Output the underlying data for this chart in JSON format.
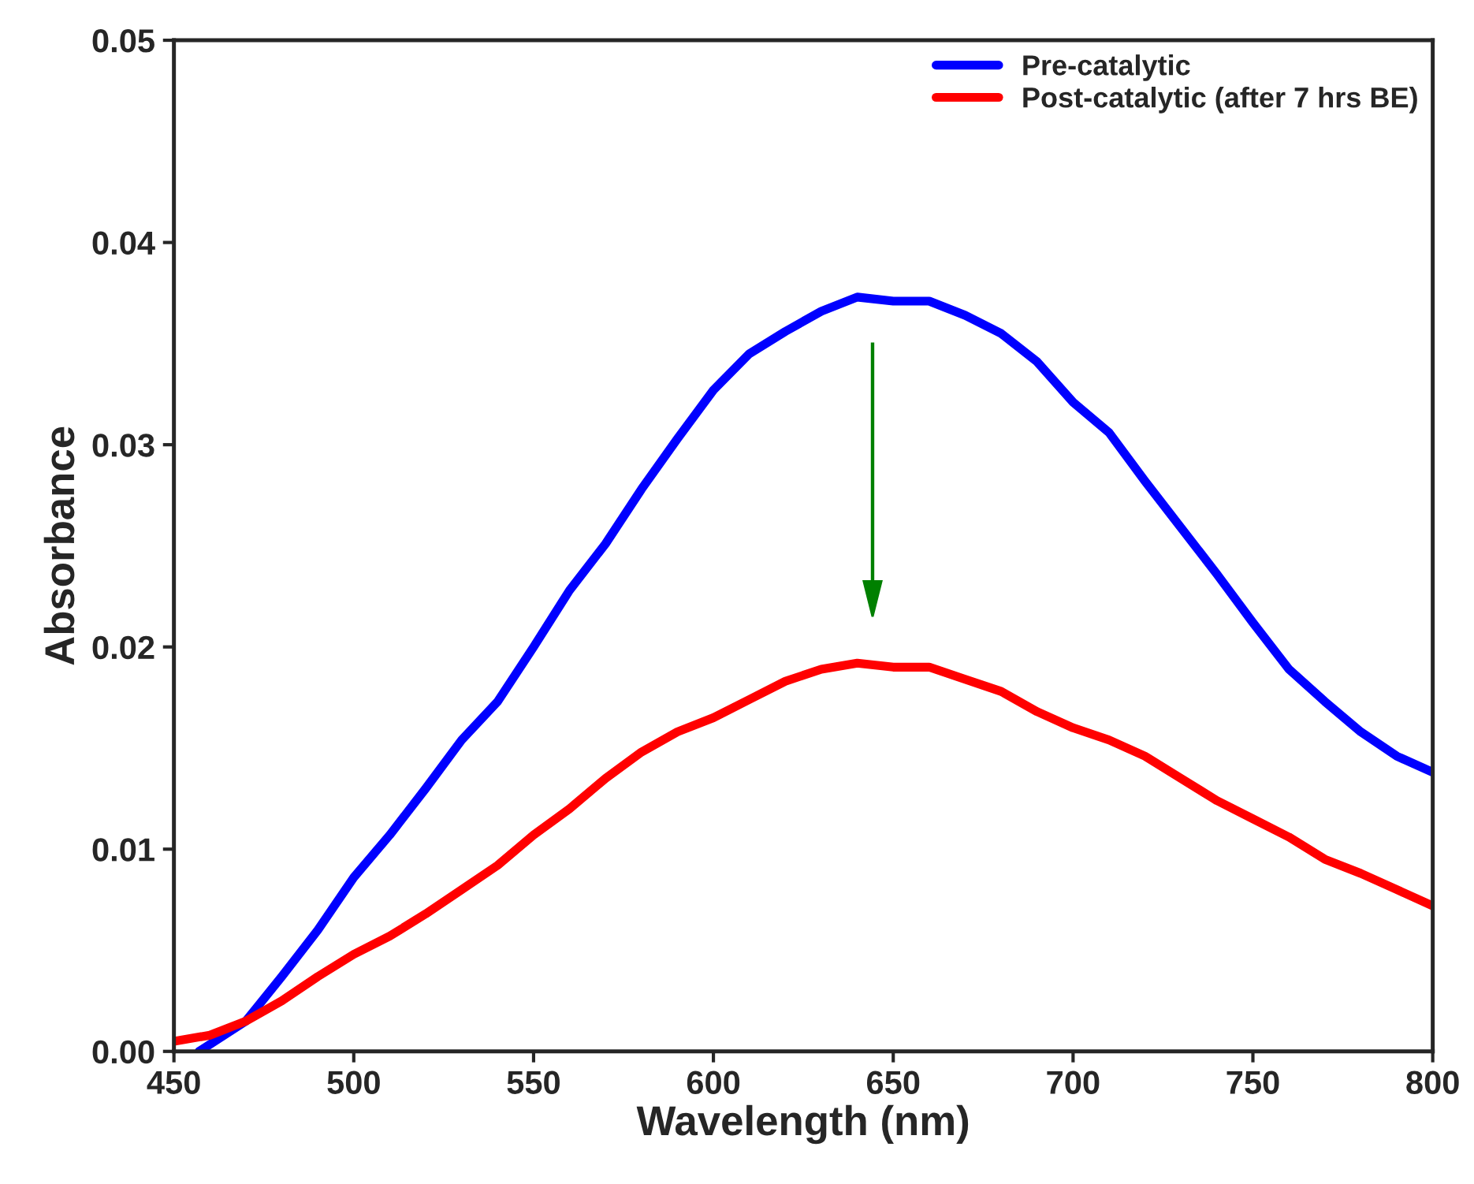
{
  "chart_data": {
    "type": "line",
    "xlabel": "Wavelength (nm)",
    "ylabel": "Absorbance",
    "xlim": [
      450,
      800
    ],
    "xticks": [
      450,
      500,
      550,
      600,
      650,
      700,
      750,
      800
    ],
    "ylim": [
      0,
      0.05
    ],
    "yticks": [
      {
        "value": 0,
        "label": "0.00"
      },
      {
        "value": 0.01,
        "label": "0.01"
      },
      {
        "value": 0.02,
        "label": "0.02"
      },
      {
        "value": 0.03,
        "label": "0.03"
      },
      {
        "value": 0.04,
        "label": "0.04"
      },
      {
        "value": 0.05,
        "label": "0.05"
      }
    ],
    "grid": false,
    "legend": "top right",
    "marker": "none",
    "line_style": "solid",
    "series": [
      {
        "name": "Pre-catalytic",
        "color": "#0000ff",
        "x": [
          457,
          470,
          480,
          490,
          500,
          510,
          520,
          530,
          540,
          550,
          560,
          570,
          580,
          590,
          600,
          610,
          620,
          630,
          640,
          650,
          660,
          670,
          680,
          690,
          700,
          710,
          720,
          730,
          740,
          750,
          760,
          770,
          780,
          790,
          800
        ],
        "values": [
          0.0,
          0.0015,
          0.0037,
          0.006,
          0.0086,
          0.0107,
          0.013,
          0.0154,
          0.0173,
          0.02,
          0.0228,
          0.0251,
          0.0278,
          0.0303,
          0.0327,
          0.0345,
          0.0356,
          0.0366,
          0.0373,
          0.0371,
          0.0371,
          0.0364,
          0.0355,
          0.0341,
          0.0321,
          0.0306,
          0.0282,
          0.0259,
          0.0236,
          0.0212,
          0.0189,
          0.0173,
          0.0158,
          0.0146,
          0.0138
        ]
      },
      {
        "name": "Post-catalytic (after 7 hrs BE)",
        "color": "#ff0000",
        "x": [
          450,
          460,
          470,
          480,
          490,
          500,
          510,
          520,
          530,
          540,
          550,
          560,
          570,
          580,
          590,
          600,
          610,
          620,
          630,
          640,
          650,
          660,
          670,
          680,
          690,
          700,
          710,
          720,
          730,
          740,
          750,
          760,
          770,
          780,
          790,
          800
        ],
        "values": [
          0.0005,
          0.0008,
          0.0015,
          0.0025,
          0.0037,
          0.0048,
          0.0057,
          0.0068,
          0.008,
          0.0092,
          0.0107,
          0.012,
          0.0135,
          0.0148,
          0.0158,
          0.0165,
          0.0174,
          0.0183,
          0.0189,
          0.0192,
          0.019,
          0.019,
          0.0184,
          0.0178,
          0.0168,
          0.016,
          0.0154,
          0.0146,
          0.0135,
          0.0124,
          0.0115,
          0.0106,
          0.0095,
          0.0088,
          0.008,
          0.0072
        ]
      }
    ]
  }
}
